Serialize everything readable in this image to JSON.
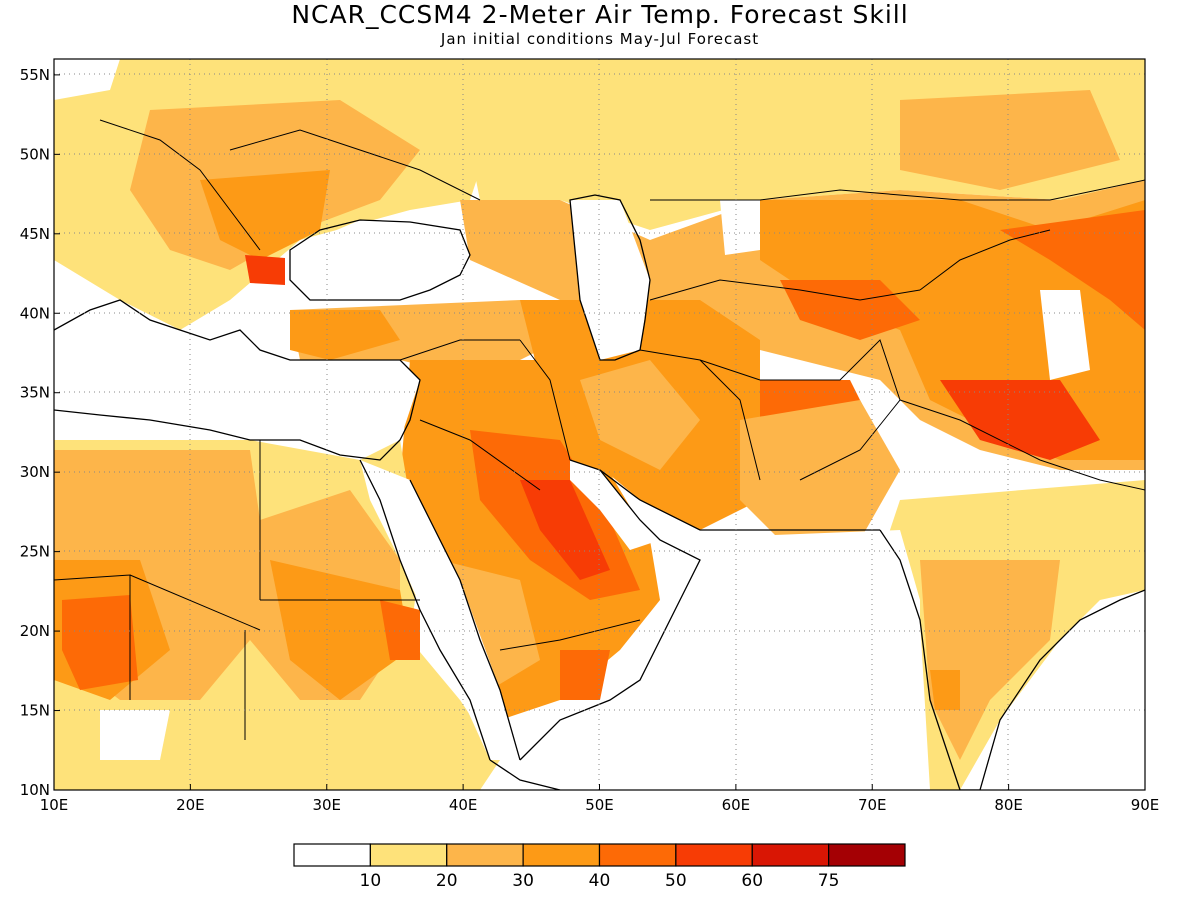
{
  "title": "NCAR_CCSM4 2-Meter Air Temp. Forecast Skill",
  "subtitle": "Jan initial conditions  May-Jul Forecast",
  "map": {
    "lon_range": [
      10,
      90
    ],
    "lat_range": [
      10,
      56
    ],
    "lon_ticks": [
      "10E",
      "20E",
      "30E",
      "40E",
      "50E",
      "60E",
      "70E",
      "80E",
      "90E"
    ],
    "lat_ticks": [
      "10N",
      "15N",
      "20N",
      "25N",
      "30N",
      "35N",
      "40N",
      "45N",
      "50N",
      "55N"
    ],
    "grid": true
  },
  "colorbar": {
    "colors": [
      "#ffffff",
      "#fee27a",
      "#fdb54a",
      "#fd9a16",
      "#fd6a06",
      "#f73c05",
      "#d91604",
      "#a40004"
    ],
    "labels": [
      "10",
      "20",
      "30",
      "40",
      "50",
      "60",
      "75"
    ]
  }
}
